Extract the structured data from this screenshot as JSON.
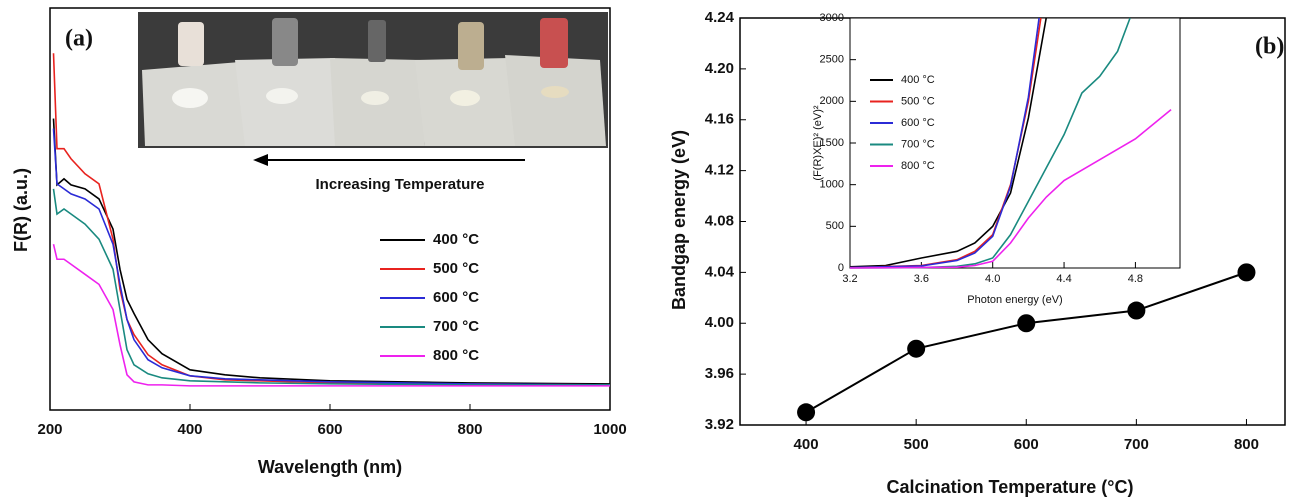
{
  "chart_data": [
    {
      "type": "line",
      "title": "(a)",
      "x_label": "Wavelength (nm)",
      "y_label": "F(R) (a.u.)",
      "annotation": "Increasing Temperature",
      "x": [
        205,
        210,
        220,
        230,
        250,
        270,
        290,
        300,
        310,
        320,
        340,
        360,
        400,
        450,
        500,
        600,
        800,
        1000
      ],
      "xlim": [
        200,
        1000
      ],
      "xticks": [
        200,
        400,
        600,
        800,
        1000
      ],
      "ylim": [
        0,
        1
      ],
      "series": [
        {
          "name": "400 °C",
          "color": "#000000",
          "values": [
            0.725,
            0.56,
            0.575,
            0.56,
            0.55,
            0.525,
            0.45,
            0.35,
            0.275,
            0.24,
            0.175,
            0.14,
            0.1,
            0.0875,
            0.08,
            0.0725,
            0.0675,
            0.065
          ]
        },
        {
          "name": "500 °C",
          "color": "#e8231f",
          "values": [
            0.8875,
            0.65,
            0.65,
            0.625,
            0.5875,
            0.5625,
            0.425,
            0.3,
            0.225,
            0.1875,
            0.1375,
            0.1125,
            0.085,
            0.075,
            0.0725,
            0.0675,
            0.065,
            0.0625
          ]
        },
        {
          "name": "600 °C",
          "color": "#2b2bd6",
          "values": [
            0.7,
            0.5625,
            0.55,
            0.5375,
            0.525,
            0.5,
            0.4125,
            0.3125,
            0.225,
            0.175,
            0.125,
            0.105,
            0.085,
            0.0775,
            0.075,
            0.07,
            0.065,
            0.0625
          ]
        },
        {
          "name": "700 °C",
          "color": "#1a8a80",
          "values": [
            0.55,
            0.4875,
            0.5,
            0.4875,
            0.4625,
            0.425,
            0.35,
            0.25,
            0.15,
            0.1125,
            0.09,
            0.08,
            0.0725,
            0.07,
            0.0675,
            0.065,
            0.0625,
            0.0625
          ]
        },
        {
          "name": "800 °C",
          "color": "#ee22ee",
          "values": [
            0.4125,
            0.375,
            0.375,
            0.3625,
            0.3375,
            0.3125,
            0.25,
            0.1625,
            0.0875,
            0.07,
            0.0625,
            0.0625,
            0.06,
            0.06,
            0.06,
            0.06,
            0.06,
            0.06
          ]
        }
      ]
    },
    {
      "type": "scatter",
      "title": "(b)",
      "x_label": "Calcination Temperature (°C)",
      "y_label": "Bandgap energy (eV)",
      "x": [
        400,
        500,
        600,
        700,
        800
      ],
      "xlim": [
        340,
        835
      ],
      "xticks": [
        400,
        500,
        600,
        700,
        800
      ],
      "ylim": [
        3.92,
        4.24
      ],
      "yticks": [
        3.92,
        3.96,
        {
          "value": 4,
          "label": "4.00"
        },
        4.04,
        4.08,
        4.12,
        4.16,
        {
          "value": 4.2,
          "label": "4.20"
        },
        4.24
      ],
      "series": [
        {
          "color": "#000000",
          "values": [
            3.93,
            3.98,
            4.0,
            4.01,
            4.04
          ]
        }
      ]
    },
    {
      "type": "line",
      "x_label": "Photon energy (eV)",
      "y_label": "(F(R)XE)² (eV)²",
      "xlim": [
        3.2,
        5.05
      ],
      "xticks": [
        3.2,
        3.6,
        {
          "value": 4,
          "label": "4.0"
        },
        4.4,
        4.8
      ],
      "ylim": [
        0,
        3000
      ],
      "yticks": [
        0,
        500,
        1000,
        1500,
        2000,
        2500,
        3000
      ],
      "series": [
        {
          "name": "400 °C",
          "color": "#000000",
          "x": [
            3.2,
            3.4,
            3.6,
            3.8,
            3.9,
            4.0,
            4.1,
            4.2,
            4.3
          ],
          "values": [
            15,
            30,
            120,
            200,
            300,
            500,
            900,
            1800,
            3000
          ]
        },
        {
          "name": "500 °C",
          "color": "#e8231f",
          "x": [
            3.2,
            3.6,
            3.8,
            3.9,
            4.0,
            4.1,
            4.2,
            4.27
          ],
          "values": [
            5,
            30,
            100,
            200,
            400,
            1000,
            2000,
            3000
          ]
        },
        {
          "name": "600 °C",
          "color": "#2b2bd6",
          "x": [
            3.2,
            3.6,
            3.8,
            3.9,
            4.0,
            4.1,
            4.2,
            4.26
          ],
          "values": [
            5,
            25,
            90,
            180,
            380,
            980,
            2050,
            3000
          ]
        },
        {
          "name": "700 °C",
          "color": "#1a8a80",
          "x": [
            3.2,
            3.6,
            3.8,
            3.9,
            4.0,
            4.1,
            4.2,
            4.3,
            4.4,
            4.5,
            4.6,
            4.7,
            4.77
          ],
          "values": [
            0,
            5,
            20,
            50,
            120,
            400,
            800,
            1200,
            1600,
            2100,
            2300,
            2600,
            3000
          ]
        },
        {
          "name": "800 °C",
          "color": "#ee22ee",
          "x": [
            3.2,
            3.8,
            3.9,
            4.0,
            4.1,
            4.2,
            4.3,
            4.4,
            4.6,
            4.8,
            5.0
          ],
          "values": [
            0,
            10,
            30,
            80,
            300,
            600,
            850,
            1050,
            1300,
            1550,
            1900
          ]
        }
      ]
    }
  ]
}
